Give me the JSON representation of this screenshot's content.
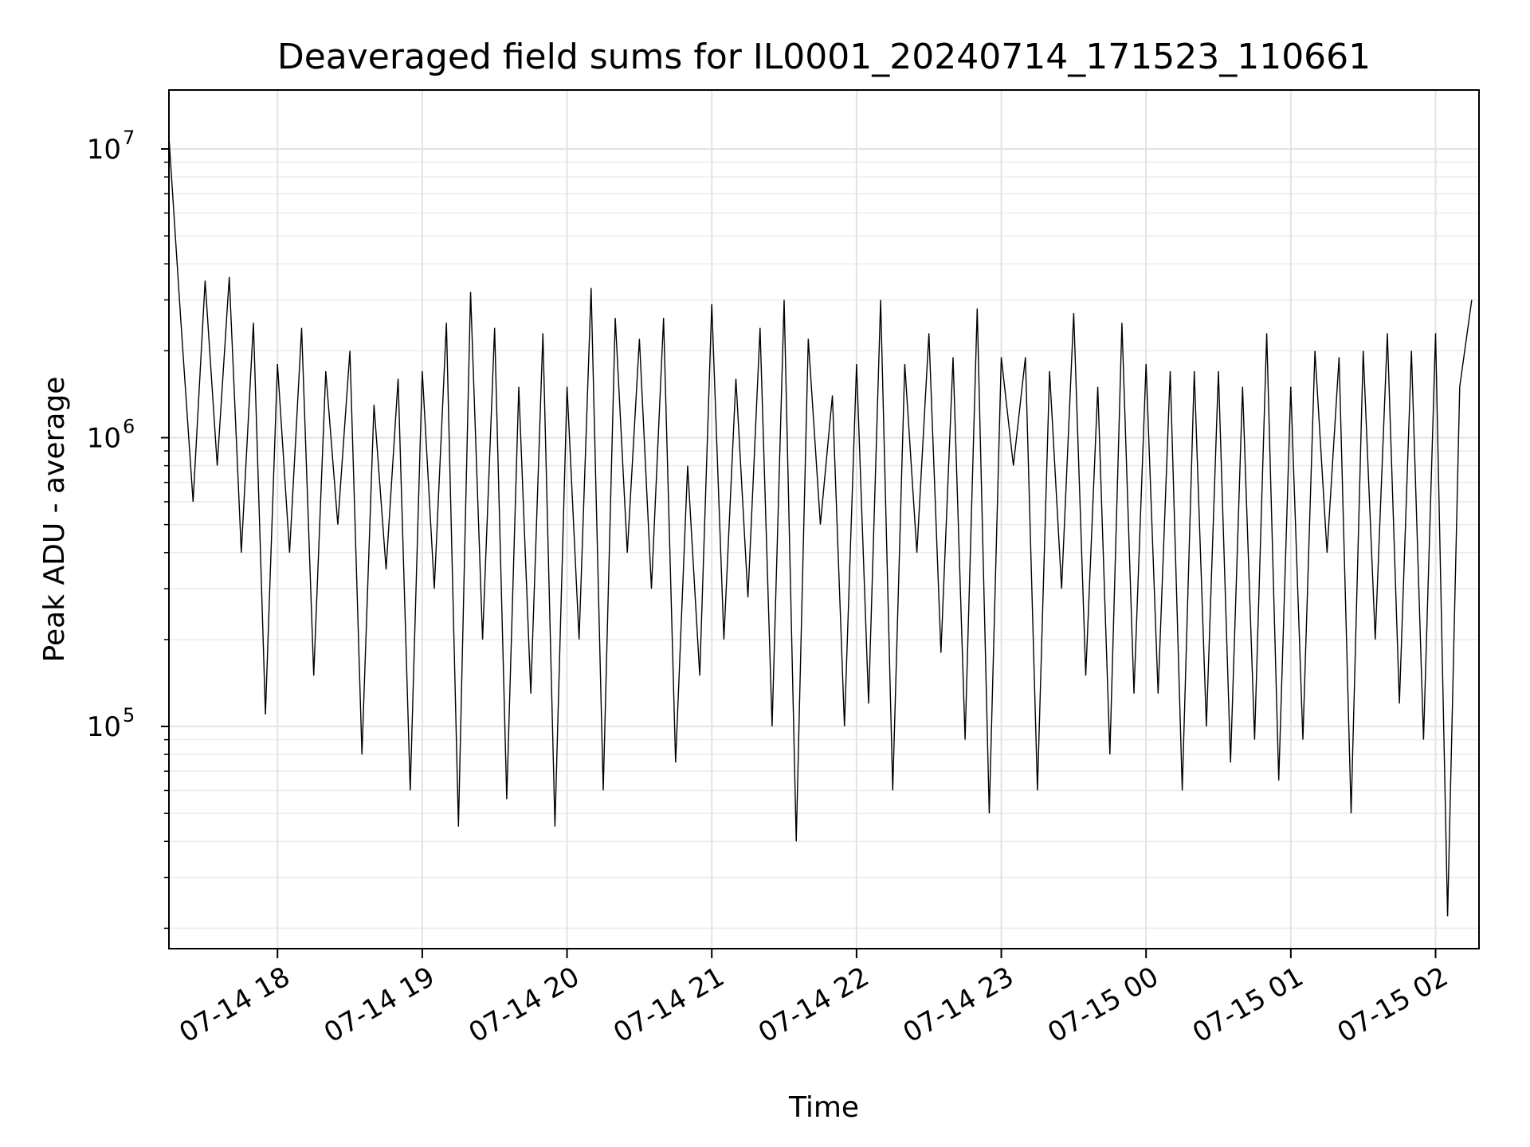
{
  "chart_data": {
    "type": "line",
    "title": "Deaveraged field sums for IL0001_20240714_171523_110661",
    "xlabel": "Time",
    "ylabel": "Peak ADU - average",
    "yscale": "log",
    "ylim": [
      17000,
      16000000
    ],
    "xlim": [
      "2024-07-14 17:15",
      "2024-07-15 02:18"
    ],
    "x_ticks": [
      "07-14 18",
      "07-14 19",
      "07-14 20",
      "07-14 21",
      "07-14 22",
      "07-14 23",
      "07-15 00",
      "07-15 01",
      "07-15 02"
    ],
    "y_ticks": [
      {
        "base": "10",
        "exp": "5",
        "value": 100000
      },
      {
        "base": "10",
        "exp": "6",
        "value": 1000000
      },
      {
        "base": "10",
        "exp": "7",
        "value": 10000000
      }
    ],
    "grid": true,
    "line_color": "#000000",
    "series": [
      {
        "x": [
          "2024-07-14 17:15",
          "2024-07-14 17:20",
          "2024-07-14 17:25",
          "2024-07-14 17:30",
          "2024-07-14 17:35",
          "2024-07-14 17:40",
          "2024-07-14 17:45",
          "2024-07-14 17:50",
          "2024-07-14 17:55",
          "2024-07-14 18:00",
          "2024-07-14 18:05",
          "2024-07-14 18:10",
          "2024-07-14 18:15",
          "2024-07-14 18:20",
          "2024-07-14 18:25",
          "2024-07-14 18:30",
          "2024-07-14 18:35",
          "2024-07-14 18:40",
          "2024-07-14 18:45",
          "2024-07-14 18:50",
          "2024-07-14 18:55",
          "2024-07-14 19:00",
          "2024-07-14 19:05",
          "2024-07-14 19:10",
          "2024-07-14 19:15",
          "2024-07-14 19:20",
          "2024-07-14 19:25",
          "2024-07-14 19:30",
          "2024-07-14 19:35",
          "2024-07-14 19:40",
          "2024-07-14 19:45",
          "2024-07-14 19:50",
          "2024-07-14 19:55",
          "2024-07-14 20:00",
          "2024-07-14 20:05",
          "2024-07-14 20:10",
          "2024-07-14 20:15",
          "2024-07-14 20:20",
          "2024-07-14 20:25",
          "2024-07-14 20:30",
          "2024-07-14 20:35",
          "2024-07-14 20:40",
          "2024-07-14 20:45",
          "2024-07-14 20:50",
          "2024-07-14 20:55",
          "2024-07-14 21:00",
          "2024-07-14 21:05",
          "2024-07-14 21:10",
          "2024-07-14 21:15",
          "2024-07-14 21:20",
          "2024-07-14 21:25",
          "2024-07-14 21:30",
          "2024-07-14 21:35",
          "2024-07-14 21:40",
          "2024-07-14 21:45",
          "2024-07-14 21:50",
          "2024-07-14 21:55",
          "2024-07-14 22:00",
          "2024-07-14 22:05",
          "2024-07-14 22:10",
          "2024-07-14 22:15",
          "2024-07-14 22:20",
          "2024-07-14 22:25",
          "2024-07-14 22:30",
          "2024-07-14 22:35",
          "2024-07-14 22:40",
          "2024-07-14 22:45",
          "2024-07-14 22:50",
          "2024-07-14 22:55",
          "2024-07-14 23:00",
          "2024-07-14 23:05",
          "2024-07-14 23:10",
          "2024-07-14 23:15",
          "2024-07-14 23:20",
          "2024-07-14 23:25",
          "2024-07-14 23:30",
          "2024-07-14 23:35",
          "2024-07-14 23:40",
          "2024-07-14 23:45",
          "2024-07-14 23:50",
          "2024-07-14 23:55",
          "2024-07-15 00:00",
          "2024-07-15 00:05",
          "2024-07-15 00:10",
          "2024-07-15 00:15",
          "2024-07-15 00:20",
          "2024-07-15 00:25",
          "2024-07-15 00:30",
          "2024-07-15 00:35",
          "2024-07-15 00:40",
          "2024-07-15 00:45",
          "2024-07-15 00:50",
          "2024-07-15 00:55",
          "2024-07-15 01:00",
          "2024-07-15 01:05",
          "2024-07-15 01:10",
          "2024-07-15 01:15",
          "2024-07-15 01:20",
          "2024-07-15 01:25",
          "2024-07-15 01:30",
          "2024-07-15 01:35",
          "2024-07-15 01:40",
          "2024-07-15 01:45",
          "2024-07-15 01:50",
          "2024-07-15 01:55",
          "2024-07-15 02:00",
          "2024-07-15 02:05",
          "2024-07-15 02:10",
          "2024-07-15 02:15"
        ],
        "y": [
          11000000,
          2500000,
          600000,
          3500000,
          800000,
          3600000,
          400000,
          2500000,
          110000,
          1800000,
          400000,
          2400000,
          150000,
          1700000,
          500000,
          2000000,
          80000,
          1300000,
          350000,
          1600000,
          60000,
          1700000,
          300000,
          2500000,
          45000,
          3200000,
          200000,
          2400000,
          56000,
          1500000,
          130000,
          2300000,
          45000,
          1500000,
          200000,
          3300000,
          60000,
          2600000,
          400000,
          2200000,
          300000,
          2600000,
          75000,
          800000,
          150000,
          2900000,
          200000,
          1600000,
          280000,
          2400000,
          100000,
          3000000,
          40000,
          2200000,
          500000,
          1400000,
          100000,
          1800000,
          120000,
          3000000,
          60000,
          1800000,
          400000,
          2300000,
          180000,
          1900000,
          90000,
          2800000,
          50000,
          1900000,
          800000,
          1900000,
          60000,
          1700000,
          300000,
          2700000,
          150000,
          1500000,
          80000,
          2500000,
          130000,
          1800000,
          130000,
          1700000,
          60000,
          1700000,
          100000,
          1700000,
          75000,
          1500000,
          90000,
          2300000,
          65000,
          1500000,
          90000,
          2000000,
          400000,
          1900000,
          50000,
          2000000,
          200000,
          2300000,
          120000,
          2000000,
          90000,
          2300000,
          22000,
          1500000,
          3000000
        ]
      }
    ]
  }
}
